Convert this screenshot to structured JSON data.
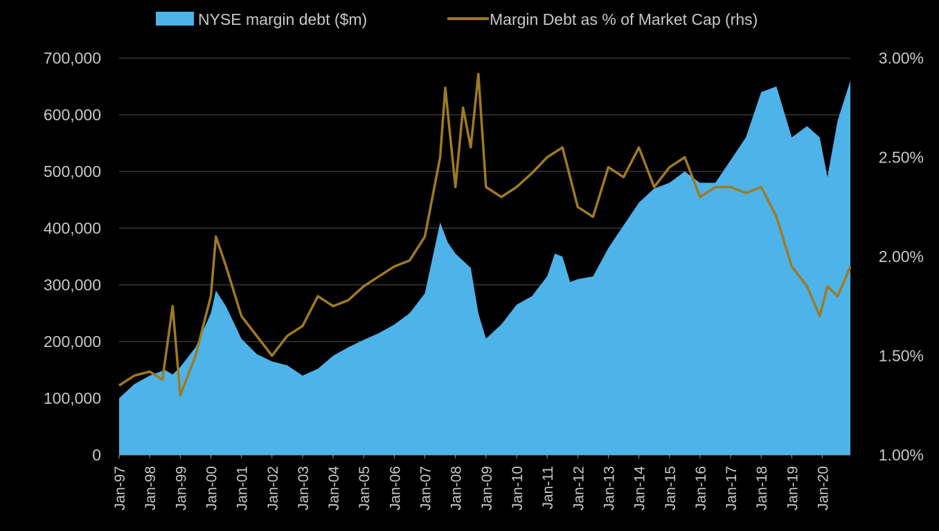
{
  "chart_data": {
    "type": "area",
    "x_start": "Jan-97",
    "x_end": "Dec-20",
    "x_tick_labels": [
      "Jan-97",
      "Jan-98",
      "Jan-99",
      "Jan-00",
      "Jan-01",
      "Jan-02",
      "Jan-03",
      "Jan-04",
      "Jan-05",
      "Jan-06",
      "Jan-07",
      "Jan-08",
      "Jan-09",
      "Jan-10",
      "Jan-11",
      "Jan-12",
      "Jan-13",
      "Jan-14",
      "Jan-15",
      "Jan-16",
      "Jan-17",
      "Jan-18",
      "Jan-19",
      "Jan-20"
    ],
    "y_left": {
      "min": 0,
      "max": 700000,
      "ticks": [
        "0",
        "100,000",
        "200,000",
        "300,000",
        "400,000",
        "500,000",
        "600,000",
        "700,000"
      ]
    },
    "y_right": {
      "min": 1.0,
      "max": 3.0,
      "ticks": [
        "1.00%",
        "1.50%",
        "2.00%",
        "2.50%",
        "3.00%"
      ]
    },
    "grid": true,
    "legend_position": "top",
    "colors": {
      "area": "#4db3e8",
      "line": "#a07a22",
      "grid": "#555555",
      "background": "#000000"
    },
    "series": [
      {
        "name": "NYSE margin debt ($m)",
        "type": "area",
        "axis": "left",
        "points": [
          [
            "Jan-97",
            100000
          ],
          [
            "Jul-97",
            125000
          ],
          [
            "Jan-98",
            140000
          ],
          [
            "Jul-98",
            150000
          ],
          [
            "Oct-98",
            142000
          ],
          [
            "Jan-99",
            155000
          ],
          [
            "Jul-99",
            190000
          ],
          [
            "Jan-00",
            250000
          ],
          [
            "Mar-00",
            290000
          ],
          [
            "Jul-00",
            262000
          ],
          [
            "Jan-01",
            205000
          ],
          [
            "Jul-01",
            178000
          ],
          [
            "Jan-02",
            165000
          ],
          [
            "Jul-02",
            158000
          ],
          [
            "Jan-03",
            140000
          ],
          [
            "Jul-03",
            152000
          ],
          [
            "Jan-04",
            175000
          ],
          [
            "Jul-04",
            190000
          ],
          [
            "Jan-05",
            203000
          ],
          [
            "Jul-05",
            215000
          ],
          [
            "Jan-06",
            230000
          ],
          [
            "Jul-06",
            250000
          ],
          [
            "Jan-07",
            285000
          ],
          [
            "Jul-07",
            410000
          ],
          [
            "Oct-07",
            375000
          ],
          [
            "Jan-08",
            355000
          ],
          [
            "Jul-08",
            330000
          ],
          [
            "Oct-08",
            250000
          ],
          [
            "Jan-09",
            205000
          ],
          [
            "Jul-09",
            230000
          ],
          [
            "Jan-10",
            265000
          ],
          [
            "Jul-10",
            280000
          ],
          [
            "Jan-11",
            315000
          ],
          [
            "Apr-11",
            355000
          ],
          [
            "Jul-11",
            350000
          ],
          [
            "Oct-11",
            305000
          ],
          [
            "Jan-12",
            310000
          ],
          [
            "Jul-12",
            315000
          ],
          [
            "Jan-13",
            365000
          ],
          [
            "Jul-13",
            405000
          ],
          [
            "Jan-14",
            445000
          ],
          [
            "Jul-14",
            470000
          ],
          [
            "Jan-15",
            480000
          ],
          [
            "Jul-15",
            500000
          ],
          [
            "Jan-16",
            480000
          ],
          [
            "Jul-16",
            480000
          ],
          [
            "Jan-17",
            520000
          ],
          [
            "Jul-17",
            560000
          ],
          [
            "Jan-18",
            640000
          ],
          [
            "Jul-18",
            650000
          ],
          [
            "Jan-19",
            560000
          ],
          [
            "Jul-19",
            580000
          ],
          [
            "Dec-19",
            560000
          ],
          [
            "Mar-20",
            490000
          ],
          [
            "Jul-20",
            590000
          ],
          [
            "Dec-20",
            660000
          ]
        ]
      },
      {
        "name": "Margin Debt as % of Market Cap (rhs)",
        "type": "line",
        "axis": "right",
        "points": [
          [
            "Jan-97",
            1.35
          ],
          [
            "Jul-97",
            1.4
          ],
          [
            "Jan-98",
            1.42
          ],
          [
            "Jun-98",
            1.38
          ],
          [
            "Oct-98",
            1.75
          ],
          [
            "Jan-99",
            1.3
          ],
          [
            "Jul-99",
            1.5
          ],
          [
            "Jan-00",
            1.8
          ],
          [
            "Mar-00",
            2.1
          ],
          [
            "Jul-00",
            1.95
          ],
          [
            "Jan-01",
            1.7
          ],
          [
            "Jul-01",
            1.6
          ],
          [
            "Jan-02",
            1.5
          ],
          [
            "Jul-02",
            1.6
          ],
          [
            "Jan-03",
            1.65
          ],
          [
            "Jul-03",
            1.8
          ],
          [
            "Jan-04",
            1.75
          ],
          [
            "Jul-04",
            1.78
          ],
          [
            "Jan-05",
            1.85
          ],
          [
            "Jul-05",
            1.9
          ],
          [
            "Jan-06",
            1.95
          ],
          [
            "Jul-06",
            1.98
          ],
          [
            "Jan-07",
            2.1
          ],
          [
            "Jul-07",
            2.5
          ],
          [
            "Sep-07",
            2.85
          ],
          [
            "Jan-08",
            2.35
          ],
          [
            "Apr-08",
            2.75
          ],
          [
            "Jul-08",
            2.55
          ],
          [
            "Oct-08",
            2.92
          ],
          [
            "Jan-09",
            2.35
          ],
          [
            "Jul-09",
            2.3
          ],
          [
            "Jan-10",
            2.35
          ],
          [
            "Jul-10",
            2.42
          ],
          [
            "Jan-11",
            2.5
          ],
          [
            "Jul-11",
            2.55
          ],
          [
            "Jan-12",
            2.25
          ],
          [
            "Jul-12",
            2.2
          ],
          [
            "Jan-13",
            2.45
          ],
          [
            "Jul-13",
            2.4
          ],
          [
            "Jan-14",
            2.55
          ],
          [
            "Jul-14",
            2.35
          ],
          [
            "Jan-15",
            2.45
          ],
          [
            "Jul-15",
            2.5
          ],
          [
            "Jan-16",
            2.3
          ],
          [
            "Jul-16",
            2.35
          ],
          [
            "Jan-17",
            2.35
          ],
          [
            "Jul-17",
            2.32
          ],
          [
            "Jan-18",
            2.35
          ],
          [
            "Jul-18",
            2.2
          ],
          [
            "Jan-19",
            1.95
          ],
          [
            "Jul-19",
            1.85
          ],
          [
            "Dec-19",
            1.7
          ],
          [
            "Mar-20",
            1.85
          ],
          [
            "Jul-20",
            1.8
          ],
          [
            "Dec-20",
            1.95
          ]
        ]
      }
    ]
  }
}
